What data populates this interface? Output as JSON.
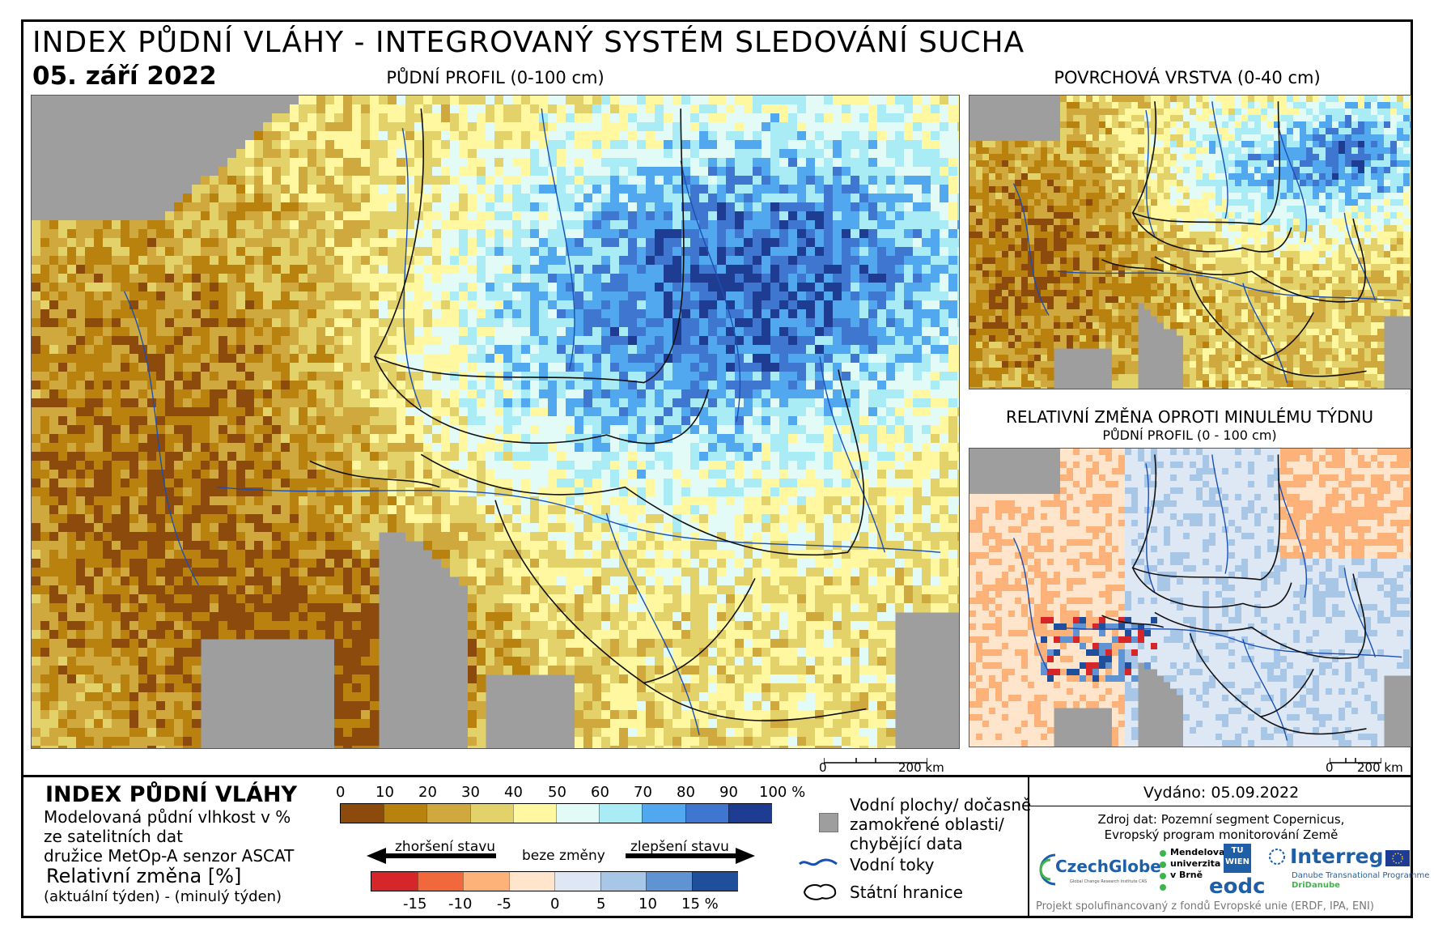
{
  "header": {
    "title": "INDEX PŮDNÍ VLÁHY - INTEGROVANÝ SYSTÉM SLEDOVÁNÍ SUCHA",
    "date": "05. září 2022"
  },
  "panels": {
    "main": {
      "caption": "PŮDNÍ PROFIL (0-100 cm)",
      "scale_start": "0",
      "scale_end": "200 km"
    },
    "surface": {
      "caption": "POVRCHOVÁ VRSTVA (0-40 cm)"
    },
    "change": {
      "caption": "RELATIVNÍ ZMĚNA OPROTI MINULÉMU TÝDNU",
      "subcaption": "PŮDNÍ PROFIL (0 - 100 cm)",
      "scale_start": "0",
      "scale_end": "200 km"
    }
  },
  "legend": {
    "title": "INDEX PŮDNÍ VLÁHY",
    "desc_lines": [
      "Modelovaná půdní vlhkost v %",
      "ze satelitních dat",
      "družice MetOp-A senzor ASCAT"
    ],
    "change_title": "Relativní změna [%]",
    "change_desc": "(aktuální týden) - (minulý týden)",
    "index_ticks": [
      "0",
      "10",
      "20",
      "30",
      "40",
      "50",
      "60",
      "70",
      "80",
      "90",
      "100 %"
    ],
    "index_colors": [
      "#8c4a0c",
      "#b9820f",
      "#cfa93d",
      "#e3d26a",
      "#fff8a0",
      "#e3fbf6",
      "#a9ecf6",
      "#52a8ef",
      "#3f77d0",
      "#1e3d92"
    ],
    "worse_label": "zhoršení stavu",
    "nochange_label": "beze změny",
    "better_label": "zlepšení stavu",
    "change_ticks": [
      "-15",
      "-10",
      "-5",
      "0",
      "5",
      "10",
      "15 %"
    ],
    "change_colors": [
      "#d7262a",
      "#f2683d",
      "#fdb27a",
      "#fee5cb",
      "#dde8f4",
      "#a8c6e6",
      "#5f93d1",
      "#1f4f9b"
    ],
    "side_items": {
      "water_bodies": [
        "Vodní plochy/ dočasně",
        "zamokřené oblasti/",
        "chybějící data"
      ],
      "rivers": "Vodní toky",
      "borders": "Státní hranice"
    }
  },
  "info": {
    "issued": "Vydáno: 05.09.2022",
    "source_lines": [
      "Zdroj dat: Pozemní segment Copernicus,",
      "Evropský program monitorování Země"
    ],
    "logos": {
      "czechglobe": "CzechGlobe",
      "czechglobe_sub": "Global Change Research Institute CAS",
      "mendelu": [
        "Mendelova",
        "univerzita",
        "v Brně"
      ],
      "tuwien": "TU WIEN",
      "eodc": "eodc",
      "interreg": "Interreg",
      "interreg_sub": [
        "Danube Transnational Programme",
        "DriDanube"
      ]
    },
    "footer": "Projekt spolufinancovaný z fondů Evropské unie (ERDF, IPA, ENI)"
  }
}
